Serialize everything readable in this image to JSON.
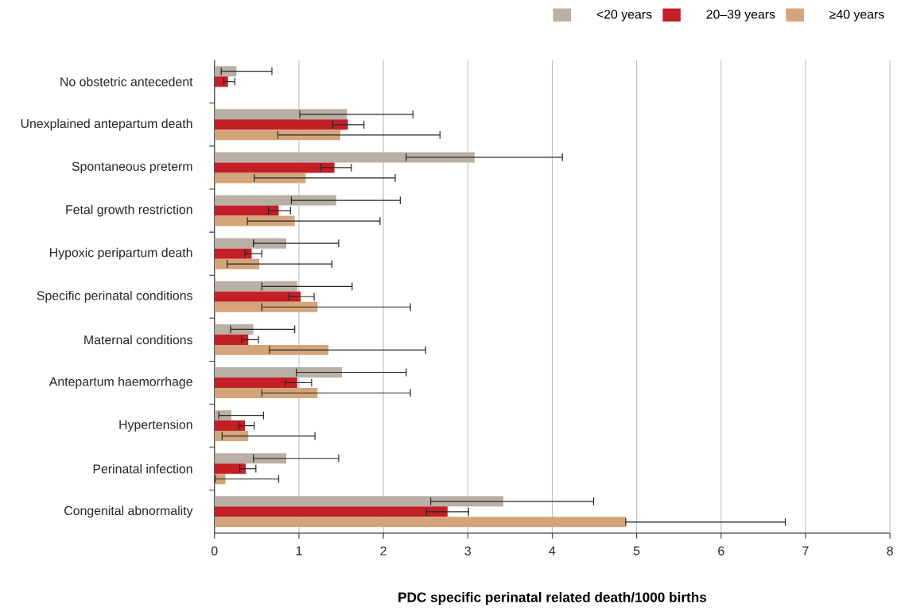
{
  "chart_data": {
    "type": "bar",
    "orientation": "horizontal",
    "xlabel": "PDC specific perinatal related death/1000 births",
    "categories": [
      "No obstetric antecedent",
      "Unexplained antepartum death",
      "Spontaneous preterm",
      "Fetal growth restriction",
      "Hypoxic peripartum death",
      "Specific perinatal conditions",
      "Maternal conditions",
      "Antepartum haemorrhage",
      "Hypertension",
      "Perinatal infection",
      "Congenital abnormality"
    ],
    "series": [
      {
        "name": "<20 years",
        "color": "#b8afa5",
        "values": [
          0.26,
          1.57,
          3.08,
          1.44,
          0.85,
          0.98,
          0.46,
          1.51,
          0.2,
          0.85,
          3.42
        ],
        "errors": [
          [
            0.08,
            0.68
          ],
          [
            1.01,
            2.35
          ],
          [
            2.27,
            4.12
          ],
          [
            0.91,
            2.2
          ],
          [
            0.46,
            1.47
          ],
          [
            0.56,
            1.63
          ],
          [
            0.19,
            0.95
          ],
          [
            0.97,
            2.27
          ],
          [
            0.05,
            0.58
          ],
          [
            0.46,
            1.47
          ],
          [
            2.56,
            4.49
          ]
        ]
      },
      {
        "name": "20–39 years",
        "color": "#c31f26",
        "values": [
          0.16,
          1.58,
          1.42,
          0.76,
          0.44,
          1.02,
          0.4,
          0.98,
          0.36,
          0.37,
          2.76
        ],
        "errors": [
          [
            0.11,
            0.24
          ],
          [
            1.4,
            1.77
          ],
          [
            1.26,
            1.62
          ],
          [
            0.64,
            0.9
          ],
          [
            0.36,
            0.56
          ],
          [
            0.88,
            1.18
          ],
          [
            0.32,
            0.52
          ],
          [
            0.84,
            1.15
          ],
          [
            0.29,
            0.47
          ],
          [
            0.3,
            0.49
          ],
          [
            2.51,
            3.01
          ]
        ]
      },
      {
        "name": "≥40 years",
        "color": "#d4a57a",
        "values": [
          null,
          1.49,
          1.08,
          0.95,
          0.53,
          1.22,
          1.35,
          1.22,
          0.4,
          0.13,
          4.87
        ],
        "errors": [
          null,
          [
            0.75,
            2.67
          ],
          [
            0.47,
            2.14
          ],
          [
            0.39,
            1.96
          ],
          [
            0.15,
            1.39
          ],
          [
            0.56,
            2.32
          ],
          [
            0.65,
            2.5
          ],
          [
            0.56,
            2.32
          ],
          [
            0.09,
            1.19
          ],
          [
            0.01,
            0.76
          ],
          [
            4.87,
            6.76
          ]
        ]
      }
    ],
    "xlim": [
      0,
      8
    ],
    "xticks": [
      0,
      1,
      2,
      3,
      4,
      5,
      6,
      7,
      8
    ],
    "grid": "x",
    "legend": "top right"
  }
}
